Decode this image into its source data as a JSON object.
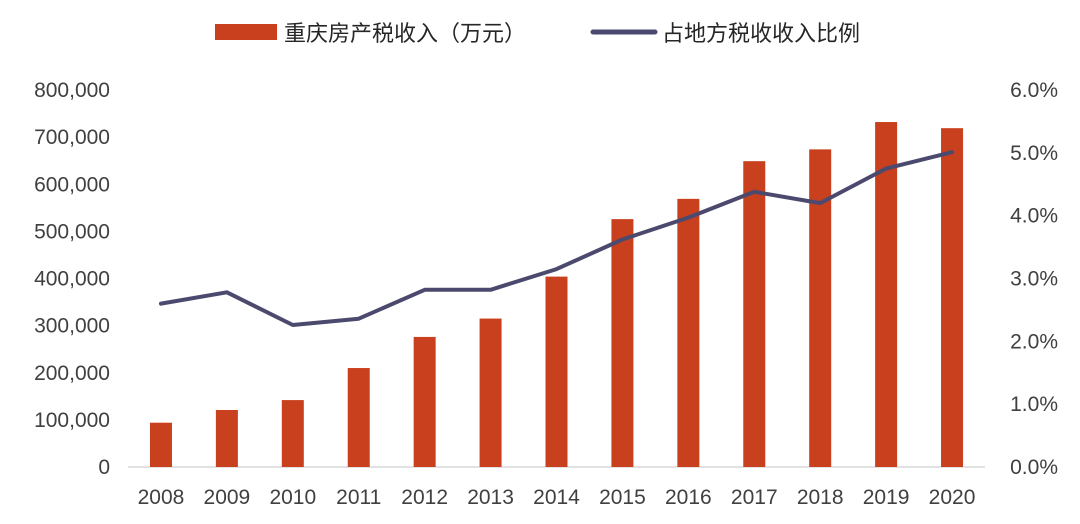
{
  "chart_data": {
    "type": "bar+line",
    "categories": [
      "2008",
      "2009",
      "2010",
      "2011",
      "2012",
      "2013",
      "2014",
      "2015",
      "2016",
      "2017",
      "2018",
      "2019",
      "2020"
    ],
    "series": [
      {
        "name": "重庆房产税收入（万元）",
        "type": "bar",
        "axis": "left",
        "color": "#C8401E",
        "values": [
          94000,
          121000,
          142000,
          210000,
          276000,
          315000,
          404000,
          526000,
          569000,
          649000,
          674000,
          732000,
          719000
        ]
      },
      {
        "name": "占地方税收收入比例",
        "type": "line",
        "axis": "right",
        "color": "#4B4A6E",
        "values": [
          2.6,
          2.78,
          2.26,
          2.36,
          2.82,
          2.82,
          3.15,
          3.62,
          3.97,
          4.38,
          4.2,
          4.75,
          5.01
        ]
      }
    ],
    "y_left": {
      "min": 0,
      "max": 800000,
      "ticks": [
        0,
        100000,
        200000,
        300000,
        400000,
        500000,
        600000,
        700000,
        800000
      ],
      "tick_labels": [
        "0",
        "100,000",
        "200,000",
        "300,000",
        "400,000",
        "500,000",
        "600,000",
        "700,000",
        "800,000"
      ]
    },
    "y_right": {
      "min": 0,
      "max": 6,
      "ticks": [
        0,
        1,
        2,
        3,
        4,
        5,
        6
      ],
      "tick_labels": [
        "0.0%",
        "1.0%",
        "2.0%",
        "3.0%",
        "4.0%",
        "5.0%",
        "6.0%"
      ]
    },
    "legend_position": "top-center",
    "grid": false
  }
}
